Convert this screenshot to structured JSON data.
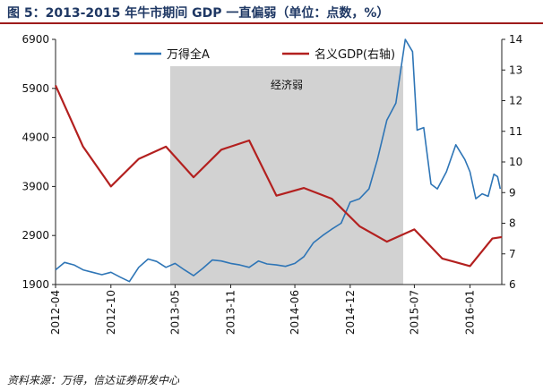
{
  "title": "图 5：2013-2015 年牛市期间 GDP 一直偏弱（单位：点数，%）",
  "source": "资料来源：万得，信达证券研发中心",
  "chart_data": {
    "type": "line",
    "annotation": "经济弱",
    "shaded_period": [
      "2013-04-15",
      "2015-05-25"
    ],
    "xlim": [
      "2012-04-01",
      "2016-04-15"
    ],
    "x_ticks": [
      "2012-04",
      "2012-10",
      "2013-05",
      "2013-11",
      "2014-06",
      "2014-12",
      "2015-07",
      "2016-01"
    ],
    "y_left": {
      "ylim": [
        1900,
        6900
      ],
      "ticks": [
        "1900",
        "2900",
        "3900",
        "4900",
        "5900",
        "6900"
      ]
    },
    "y_right": {
      "ylim": [
        6,
        14
      ],
      "ticks": [
        "6",
        "7",
        "8",
        "9",
        "10",
        "11",
        "12",
        "13",
        "14"
      ]
    },
    "legend": {
      "placement": "top"
    },
    "series": [
      {
        "name": "万得全A",
        "axis": "left",
        "color": "#2e75b6",
        "points": [
          [
            "2012-04-01",
            2200
          ],
          [
            "2012-05-01",
            2350
          ],
          [
            "2012-06-01",
            2300
          ],
          [
            "2012-07-01",
            2200
          ],
          [
            "2012-08-01",
            2150
          ],
          [
            "2012-09-01",
            2100
          ],
          [
            "2012-10-01",
            2150
          ],
          [
            "2012-11-01",
            2050
          ],
          [
            "2012-12-01",
            1960
          ],
          [
            "2013-01-01",
            2250
          ],
          [
            "2013-02-01",
            2420
          ],
          [
            "2013-03-01",
            2370
          ],
          [
            "2013-04-01",
            2250
          ],
          [
            "2013-05-01",
            2330
          ],
          [
            "2013-06-01",
            2200
          ],
          [
            "2013-07-01",
            2080
          ],
          [
            "2013-08-01",
            2230
          ],
          [
            "2013-09-01",
            2400
          ],
          [
            "2013-10-01",
            2380
          ],
          [
            "2013-11-01",
            2330
          ],
          [
            "2013-12-01",
            2300
          ],
          [
            "2014-01-01",
            2250
          ],
          [
            "2014-02-01",
            2380
          ],
          [
            "2014-03-01",
            2320
          ],
          [
            "2014-04-01",
            2300
          ],
          [
            "2014-05-01",
            2270
          ],
          [
            "2014-06-01",
            2330
          ],
          [
            "2014-07-01",
            2470
          ],
          [
            "2014-08-01",
            2750
          ],
          [
            "2014-09-01",
            2900
          ],
          [
            "2014-10-01",
            3030
          ],
          [
            "2014-11-01",
            3150
          ],
          [
            "2014-12-01",
            3580
          ],
          [
            "2015-01-01",
            3650
          ],
          [
            "2015-02-01",
            3850
          ],
          [
            "2015-03-01",
            4450
          ],
          [
            "2015-04-01",
            5250
          ],
          [
            "2015-05-01",
            5600
          ],
          [
            "2015-06-01",
            6900
          ],
          [
            "2015-06-25",
            6650
          ],
          [
            "2015-07-10",
            5050
          ],
          [
            "2015-08-01",
            5100
          ],
          [
            "2015-08-25",
            3950
          ],
          [
            "2015-09-15",
            3850
          ],
          [
            "2015-10-15",
            4200
          ],
          [
            "2015-11-15",
            4750
          ],
          [
            "2015-12-15",
            4450
          ],
          [
            "2016-01-01",
            4200
          ],
          [
            "2016-01-20",
            3650
          ],
          [
            "2016-02-10",
            3750
          ],
          [
            "2016-03-01",
            3700
          ],
          [
            "2016-03-20",
            4150
          ],
          [
            "2016-04-01",
            4100
          ],
          [
            "2016-04-10",
            3850
          ]
        ]
      },
      {
        "name": "名义GDP(右轴)",
        "axis": "right",
        "color": "#b3201f",
        "points": [
          [
            "2012-04-01",
            12.5
          ],
          [
            "2012-07-01",
            10.5
          ],
          [
            "2012-10-01",
            9.2
          ],
          [
            "2013-01-01",
            10.1
          ],
          [
            "2013-04-01",
            10.5
          ],
          [
            "2013-07-01",
            9.5
          ],
          [
            "2013-10-01",
            10.4
          ],
          [
            "2014-01-01",
            10.7
          ],
          [
            "2014-04-01",
            8.9
          ],
          [
            "2014-07-01",
            9.15
          ],
          [
            "2014-10-01",
            8.8
          ],
          [
            "2015-01-01",
            7.9
          ],
          [
            "2015-04-01",
            7.4
          ],
          [
            "2015-07-01",
            7.8
          ],
          [
            "2015-10-01",
            6.85
          ],
          [
            "2016-01-01",
            6.6
          ],
          [
            "2016-03-15",
            7.5
          ],
          [
            "2016-04-15",
            7.55
          ]
        ]
      }
    ]
  }
}
